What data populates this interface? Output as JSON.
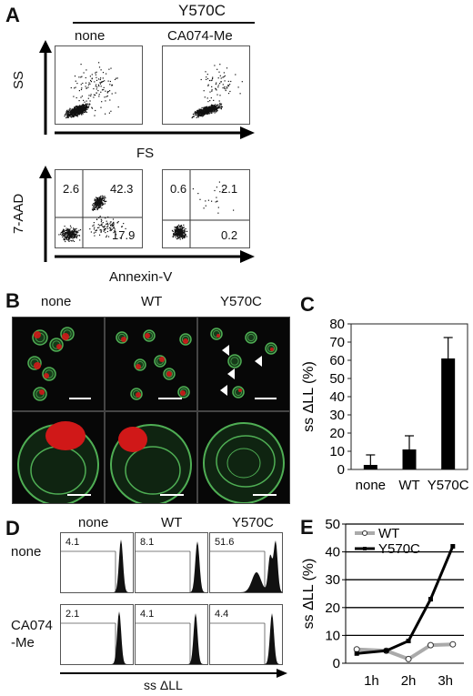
{
  "panel_letters": [
    "A",
    "B",
    "C",
    "D",
    "E"
  ],
  "panelA": {
    "group_label": "Y570C",
    "conditions": [
      "none",
      "CA074-Me"
    ],
    "scatter_ylabel": "SS",
    "scatter_xlabel": "FS",
    "annexin_ylabel": "7-AAD",
    "annexin_xlabel": "Annexin-V",
    "quadrants_none": {
      "ul": "2.6",
      "ur": "42.3",
      "lr": "17.9"
    },
    "quadrants_ca": {
      "ul": "0.6",
      "ur": "2.1",
      "lr": "0.2"
    }
  },
  "panelB": {
    "conditions": [
      "none",
      "WT",
      "Y570C"
    ]
  },
  "panelD": {
    "columns": [
      "none",
      "WT",
      "Y570C"
    ],
    "rows": [
      "none",
      "CA074\n-Me"
    ],
    "values_row1": [
      "4.1",
      "8.1",
      "51.6"
    ],
    "values_row2": [
      "2.1",
      "4.1",
      "4.4"
    ],
    "xlabel": "ss ΔLL"
  },
  "colors": {
    "wt_line": "#aaaaaa",
    "y570c_line": "#000000",
    "cell_green": "#4fae54",
    "cell_red": "#d01818"
  },
  "chart_data": [
    {
      "type": "bar",
      "panel": "C",
      "categories": [
        "none",
        "WT",
        "Y570C"
      ],
      "values": [
        2.5,
        11,
        61
      ],
      "errors": [
        5.5,
        7.5,
        11.5
      ],
      "ylabel": "ss ΔLL (%)",
      "ylim": [
        0,
        80
      ],
      "yticks": [
        0,
        10,
        20,
        30,
        40,
        50,
        60,
        70,
        80
      ],
      "grid": false
    },
    {
      "type": "line",
      "panel": "E",
      "x": [
        "1h",
        "2h",
        "3h"
      ],
      "series": [
        {
          "name": "WT",
          "x": [
            0.6,
            1.4,
            2.0,
            2.6,
            3.2
          ],
          "y": [
            5,
            4.5,
            1.5,
            6.5,
            6.8
          ]
        },
        {
          "name": "Y570C",
          "x": [
            0.6,
            1.4,
            2.0,
            2.6,
            3.2
          ],
          "y": [
            3.5,
            4.5,
            8,
            23,
            42
          ]
        }
      ],
      "ylabel": "ss ΔLL (%)",
      "ylim": [
        0,
        50
      ],
      "yticks": [
        0,
        10,
        20,
        30,
        40,
        50
      ],
      "legend": "top-left",
      "grid": true
    }
  ]
}
